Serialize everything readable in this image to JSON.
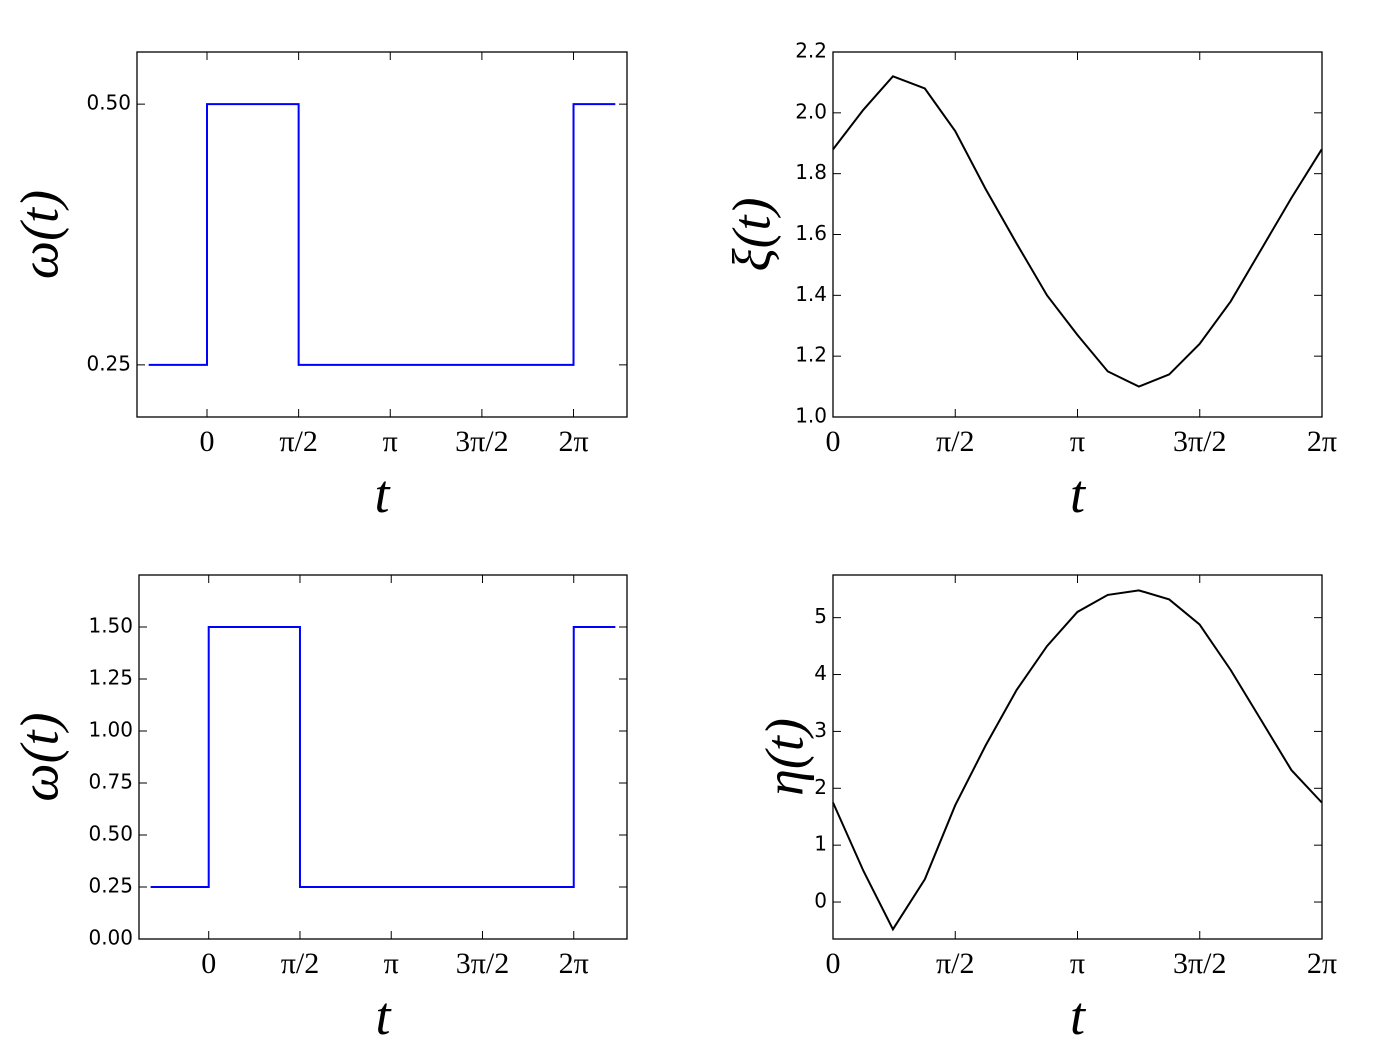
{
  "chart_data": [
    {
      "type": "line",
      "y_label": "ω(t)",
      "x_label": "t",
      "xlim": [
        -1.2,
        7.2
      ],
      "xticks": [
        0,
        {
          "value": 1.5708,
          "label": "π/2"
        },
        {
          "value": 3.1416,
          "label": "π"
        },
        {
          "value": 4.7124,
          "label": "3π/2"
        },
        {
          "value": 6.2832,
          "label": "2π"
        }
      ],
      "ylim": [
        0.2,
        0.55
      ],
      "yticks": [
        {
          "value": 0.25,
          "label": "0.25"
        },
        {
          "value": 0.5,
          "label": "0.50"
        }
      ],
      "series": [
        {
          "color": "#0000ff",
          "x": [
            -1,
            0,
            0,
            1.5708,
            1.5708,
            6.2832,
            6.2832,
            7
          ],
          "values": [
            0.25,
            0.25,
            0.5,
            0.5,
            0.25,
            0.25,
            0.5,
            0.5
          ]
        }
      ]
    },
    {
      "type": "line",
      "y_label": "ξ(t)",
      "x_label": "t",
      "xlim": [
        0,
        6.2832
      ],
      "xticks": [
        0,
        {
          "value": 1.5708,
          "label": "π/2"
        },
        {
          "value": 3.1416,
          "label": "π"
        },
        {
          "value": 4.7124,
          "label": "3π/2"
        },
        {
          "value": 6.2832,
          "label": "2π"
        }
      ],
      "ylim": [
        1.0,
        2.2
      ],
      "yticks": [
        {
          "value": 1.0,
          "label": "1.0"
        },
        1.2,
        1.4,
        1.6,
        1.8,
        {
          "value": 2.0,
          "label": "2.0"
        },
        2.2
      ],
      "series": [
        {
          "color": "#000000",
          "x": [
            0,
            0.39,
            0.77,
            1.18,
            1.57,
            1.96,
            2.36,
            2.75,
            3.14,
            3.53,
            3.93,
            4.32,
            4.71,
            5.11,
            5.5,
            5.89,
            6.28
          ],
          "values": [
            1.88,
            2.01,
            2.12,
            2.08,
            1.94,
            1.75,
            1.57,
            1.4,
            1.27,
            1.15,
            1.1,
            1.14,
            1.24,
            1.38,
            1.55,
            1.72,
            1.88
          ]
        }
      ]
    },
    {
      "type": "line",
      "y_label": "ω(t)",
      "x_label": "t",
      "xlim": [
        -1.2,
        7.2
      ],
      "xticks": [
        0,
        {
          "value": 1.5708,
          "label": "π/2"
        },
        {
          "value": 3.1416,
          "label": "π"
        },
        {
          "value": 4.7124,
          "label": "3π/2"
        },
        {
          "value": 6.2832,
          "label": "2π"
        }
      ],
      "ylim": [
        0,
        1.75
      ],
      "yticks": [
        {
          "value": 0,
          "label": "0.00"
        },
        0.25,
        {
          "value": 0.5,
          "label": "0.50"
        },
        0.75,
        {
          "value": 1.0,
          "label": "1.00"
        },
        1.25,
        {
          "value": 1.5,
          "label": "1.50"
        }
      ],
      "series": [
        {
          "color": "#0000ff",
          "x": [
            -1,
            0,
            0,
            1.5708,
            1.5708,
            6.2832,
            6.2832,
            7
          ],
          "values": [
            0.25,
            0.25,
            1.5,
            1.5,
            0.25,
            0.25,
            1.5,
            1.5
          ]
        }
      ]
    },
    {
      "type": "line",
      "y_label": "η(t)",
      "x_label": "t",
      "xlim": [
        0,
        6.2832
      ],
      "xticks": [
        0,
        {
          "value": 1.5708,
          "label": "π/2"
        },
        {
          "value": 3.1416,
          "label": "π"
        },
        {
          "value": 4.7124,
          "label": "3π/2"
        },
        {
          "value": 6.2832,
          "label": "2π"
        }
      ],
      "ylim": [
        -0.65,
        5.75
      ],
      "yticks": [
        0,
        1,
        2,
        3,
        4,
        5
      ],
      "series": [
        {
          "color": "#000000",
          "x": [
            0,
            0.39,
            0.77,
            1.18,
            1.57,
            1.96,
            2.36,
            2.75,
            3.14,
            3.53,
            3.93,
            4.32,
            4.71,
            5.11,
            5.5,
            5.89,
            6.28
          ],
          "values": [
            1.75,
            0.55,
            -0.48,
            0.4,
            1.7,
            2.75,
            3.73,
            4.5,
            5.1,
            5.4,
            5.48,
            5.32,
            4.88,
            4.08,
            3.2,
            2.32,
            1.75
          ]
        }
      ]
    }
  ]
}
